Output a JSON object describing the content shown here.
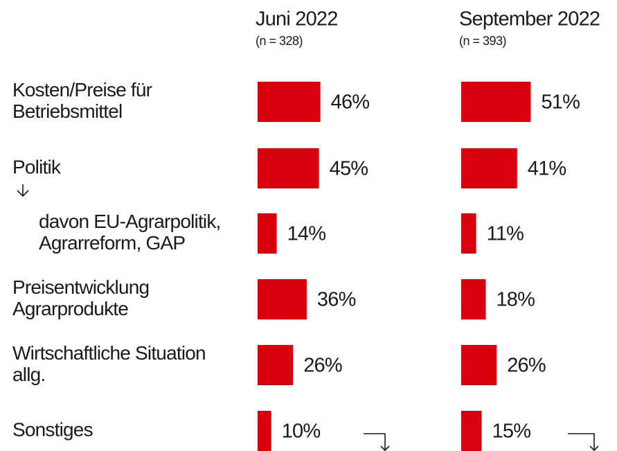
{
  "chart_data": {
    "type": "bar",
    "orientation": "horizontal",
    "categories": [
      [
        "Kosten/Preise für",
        "Betriebsmittel"
      ],
      [
        "Politik"
      ],
      [
        "davon EU-Agrarpolitik,",
        "Agrarreform, GAP"
      ],
      [
        "Preisentwicklung",
        "Agrarprodukte"
      ],
      [
        "Wirtschaftliche Situation",
        "allg."
      ],
      [
        "Sonstiges"
      ]
    ],
    "series": [
      {
        "name": "Juni 2022",
        "subtitle": "(n = 328)",
        "color": "#d9000d",
        "values": [
          46,
          45,
          14,
          36,
          26,
          10
        ],
        "value_labels": [
          "46%",
          "45%",
          "14%",
          "36%",
          "26%",
          "10%"
        ]
      },
      {
        "name": "September 2022",
        "subtitle": "(n = 393)",
        "color": "#d9000d",
        "values": [
          51,
          41,
          11,
          18,
          26,
          15
        ],
        "value_labels": [
          "51%",
          "41%",
          "11%",
          "18%",
          "26%",
          "15%"
        ]
      }
    ]
  }
}
